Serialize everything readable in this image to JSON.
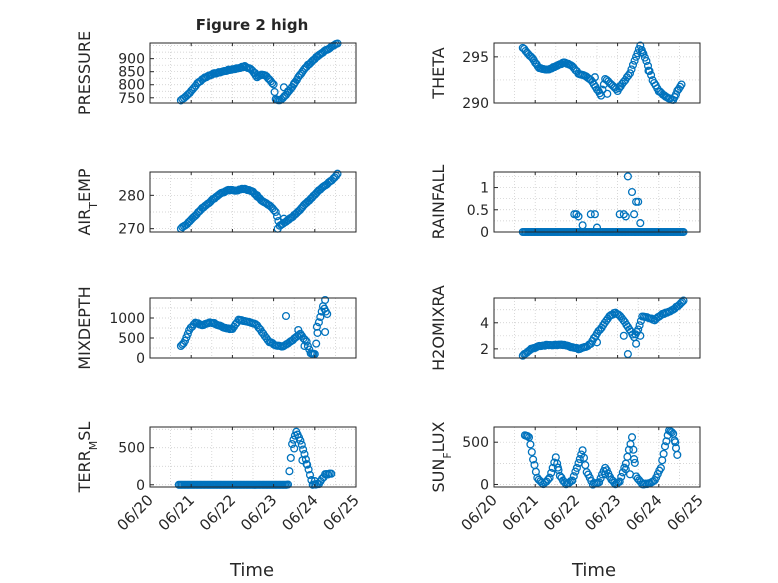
{
  "figure": {
    "title": "Figure 2 high",
    "xlabel": "Time",
    "x_ticks": [
      "06/20",
      "06/21",
      "06/22",
      "06/23",
      "06/24",
      "06/25"
    ]
  },
  "colors": {
    "marker": "#0072BD",
    "axis": "#262626",
    "grid": "#c8c8c8"
  },
  "chart_data": [
    {
      "type": "scatter",
      "ylabel": "PRESSURE",
      "xlim": [
        0,
        5
      ],
      "ylim": [
        730,
        960
      ],
      "yticks": [
        750,
        800,
        850,
        900
      ],
      "ytick_labels": [
        "750",
        "800",
        "850",
        "900"
      ],
      "knots": [
        [
          0.75,
          740
        ],
        [
          0.9,
          760
        ],
        [
          1.0,
          775
        ],
        [
          1.15,
          805
        ],
        [
          1.3,
          825
        ],
        [
          1.5,
          840
        ],
        [
          1.7,
          848
        ],
        [
          1.9,
          856
        ],
        [
          2.1,
          862
        ],
        [
          2.3,
          870
        ],
        [
          2.45,
          860
        ],
        [
          2.6,
          830
        ],
        [
          2.7,
          840
        ],
        [
          2.8,
          835
        ],
        [
          2.9,
          820
        ],
        [
          3.0,
          800
        ],
        [
          3.05,
          745
        ],
        [
          3.15,
          740
        ],
        [
          3.3,
          760
        ],
        [
          3.45,
          790
        ],
        [
          3.6,
          830
        ],
        [
          3.8,
          870
        ],
        [
          4.0,
          900
        ],
        [
          4.2,
          925
        ],
        [
          4.4,
          945
        ],
        [
          4.55,
          958
        ]
      ],
      "extra": [
        [
          3.25,
          790
        ],
        [
          3.35,
          775
        ],
        [
          3.5,
          805
        ],
        [
          2.55,
          845
        ]
      ]
    },
    {
      "type": "scatter",
      "ylabel": "THETA",
      "xlim": [
        0,
        5
      ],
      "ylim": [
        290,
        296.5
      ],
      "yticks": [
        290,
        295
      ],
      "ytick_labels": [
        "290",
        "295"
      ],
      "knots": [
        [
          0.7,
          296
        ],
        [
          0.9,
          295
        ],
        [
          1.1,
          293.8
        ],
        [
          1.3,
          293.6
        ],
        [
          1.5,
          294
        ],
        [
          1.7,
          294.4
        ],
        [
          1.9,
          294
        ],
        [
          2.05,
          293.2
        ],
        [
          2.2,
          293
        ],
        [
          2.35,
          292.5
        ],
        [
          2.5,
          291.5
        ],
        [
          2.6,
          290.8
        ],
        [
          2.7,
          292.6
        ],
        [
          2.85,
          292
        ],
        [
          3.0,
          291.3
        ],
        [
          3.15,
          292.3
        ],
        [
          3.3,
          293.2
        ],
        [
          3.45,
          295
        ],
        [
          3.55,
          296.2
        ],
        [
          3.7,
          294.5
        ],
        [
          3.85,
          292.5
        ],
        [
          4.0,
          291.3
        ],
        [
          4.2,
          290.6
        ],
        [
          4.35,
          290.3
        ],
        [
          4.45,
          291.3
        ],
        [
          4.55,
          292
        ]
      ],
      "extra": [
        [
          2.45,
          292.8
        ],
        [
          2.75,
          291
        ],
        [
          3.05,
          291.8
        ],
        [
          3.6,
          295.5
        ],
        [
          3.75,
          293.5
        ]
      ]
    },
    {
      "type": "scatter",
      "ylabel": "AIR_TEMP",
      "ylabel_main": "AIR",
      "ylabel_sub": "T",
      "ylabel_rest": "EMP",
      "xlim": [
        0,
        5
      ],
      "ylim": [
        269,
        287
      ],
      "yticks": [
        270,
        280
      ],
      "ytick_labels": [
        "270",
        "280"
      ],
      "knots": [
        [
          0.75,
          270
        ],
        [
          0.9,
          271.5
        ],
        [
          1.1,
          274
        ],
        [
          1.3,
          276.5
        ],
        [
          1.5,
          278.5
        ],
        [
          1.7,
          280.5
        ],
        [
          1.9,
          281.5
        ],
        [
          2.1,
          281.5
        ],
        [
          2.3,
          282
        ],
        [
          2.5,
          281
        ],
        [
          2.7,
          278.5
        ],
        [
          2.9,
          277
        ],
        [
          3.05,
          275
        ],
        [
          3.15,
          271
        ],
        [
          3.3,
          272
        ],
        [
          3.5,
          274
        ],
        [
          3.7,
          276.5
        ],
        [
          3.9,
          279
        ],
        [
          4.1,
          281.5
        ],
        [
          4.3,
          283.5
        ],
        [
          4.45,
          285
        ],
        [
          4.55,
          286.5
        ]
      ],
      "extra": [
        [
          3.1,
          270
        ],
        [
          3.25,
          273
        ],
        [
          2.6,
          280
        ]
      ]
    },
    {
      "type": "scatter",
      "ylabel": "RAINFALL",
      "xlim": [
        0,
        5
      ],
      "ylim": [
        0,
        1.35
      ],
      "yticks": [
        0,
        0.5,
        1
      ],
      "ytick_labels": [
        "0",
        "0.5",
        "1"
      ],
      "knots": [
        [
          0.7,
          0
        ],
        [
          4.6,
          0
        ]
      ],
      "extra": [
        [
          1.95,
          0.4
        ],
        [
          2.0,
          0.4
        ],
        [
          2.05,
          0.35
        ],
        [
          2.15,
          0.15
        ],
        [
          2.35,
          0.4
        ],
        [
          2.45,
          0.4
        ],
        [
          2.5,
          0.1
        ],
        [
          3.05,
          0.4
        ],
        [
          3.15,
          0.4
        ],
        [
          3.2,
          0.35
        ],
        [
          3.25,
          1.25
        ],
        [
          3.35,
          0.9
        ],
        [
          3.45,
          0.68
        ],
        [
          3.5,
          0.68
        ],
        [
          3.4,
          0.4
        ],
        [
          3.55,
          0.2
        ]
      ]
    },
    {
      "type": "scatter",
      "ylabel": "MIXDEPTH",
      "xlim": [
        0,
        5
      ],
      "ylim": [
        0,
        1500
      ],
      "yticks": [
        0,
        500,
        1000
      ],
      "ytick_labels": [
        "0",
        "500",
        "1000"
      ],
      "knots": [
        [
          0.75,
          300
        ],
        [
          0.85,
          420
        ],
        [
          0.95,
          700
        ],
        [
          1.1,
          880
        ],
        [
          1.3,
          820
        ],
        [
          1.45,
          900
        ],
        [
          1.6,
          850
        ],
        [
          1.8,
          760
        ],
        [
          2.0,
          720
        ],
        [
          2.15,
          950
        ],
        [
          2.3,
          930
        ],
        [
          2.45,
          880
        ],
        [
          2.6,
          820
        ],
        [
          2.75,
          600
        ],
        [
          2.9,
          400
        ],
        [
          3.05,
          320
        ],
        [
          3.2,
          280
        ],
        [
          3.35,
          360
        ],
        [
          3.5,
          480
        ],
        [
          3.65,
          600
        ],
        [
          3.8,
          400
        ],
        [
          3.9,
          120
        ],
        [
          4.0,
          100
        ],
        [
          4.1,
          900
        ],
        [
          4.2,
          1300
        ],
        [
          4.3,
          1100
        ]
      ],
      "extra": [
        [
          3.3,
          1050
        ],
        [
          3.6,
          700
        ],
        [
          3.75,
          300
        ],
        [
          4.05,
          780
        ],
        [
          4.25,
          650
        ],
        [
          4.25,
          1450
        ]
      ]
    },
    {
      "type": "scatter",
      "ylabel": "H2OMIXRA",
      "xlim": [
        0,
        5
      ],
      "ylim": [
        1.3,
        5.9
      ],
      "yticks": [
        2,
        4
      ],
      "ytick_labels": [
        "2",
        "4"
      ],
      "knots": [
        [
          0.7,
          1.5
        ],
        [
          0.9,
          2.0
        ],
        [
          1.1,
          2.2
        ],
        [
          1.3,
          2.3
        ],
        [
          1.5,
          2.3
        ],
        [
          1.7,
          2.3
        ],
        [
          1.9,
          2.1
        ],
        [
          2.05,
          2.0
        ],
        [
          2.2,
          2.1
        ],
        [
          2.35,
          2.4
        ],
        [
          2.5,
          3.2
        ],
        [
          2.65,
          3.8
        ],
        [
          2.8,
          4.5
        ],
        [
          2.95,
          4.8
        ],
        [
          3.1,
          4.4
        ],
        [
          3.25,
          3.7
        ],
        [
          3.4,
          2.9
        ],
        [
          3.5,
          3.5
        ],
        [
          3.6,
          4.5
        ],
        [
          3.75,
          4.4
        ],
        [
          3.9,
          4.2
        ],
        [
          4.05,
          4.6
        ],
        [
          4.2,
          4.8
        ],
        [
          4.35,
          5.0
        ],
        [
          4.5,
          5.4
        ],
        [
          4.6,
          5.7
        ]
      ],
      "extra": [
        [
          3.25,
          1.6
        ],
        [
          3.15,
          3.0
        ],
        [
          2.5,
          2.5
        ],
        [
          3.45,
          2.4
        ],
        [
          3.55,
          3.0
        ]
      ]
    },
    {
      "type": "scatter",
      "ylabel": "TERR_MSL",
      "ylabel_main": "TERR",
      "ylabel_sub": "M",
      "ylabel_rest": "SL",
      "xlim": [
        0,
        5
      ],
      "ylim": [
        -30,
        780
      ],
      "yticks": [
        0,
        500
      ],
      "ytick_labels": [
        "0",
        "500"
      ],
      "knots": [
        [
          0.7,
          0
        ],
        [
          3.35,
          0
        ],
        [
          3.45,
          550
        ],
        [
          3.55,
          720
        ],
        [
          3.65,
          600
        ],
        [
          3.75,
          420
        ],
        [
          3.85,
          200
        ],
        [
          3.95,
          0
        ],
        [
          4.1,
          10
        ],
        [
          4.25,
          140
        ],
        [
          4.4,
          150
        ]
      ],
      "extra": [
        [
          3.7,
          330
        ],
        [
          3.8,
          280
        ],
        [
          4.0,
          50
        ],
        [
          3.5,
          490
        ]
      ]
    },
    {
      "type": "scatter",
      "ylabel": "SUN_FLUX",
      "ylabel_main": "SUN",
      "ylabel_sub": "F",
      "ylabel_rest": "LUX",
      "xlim": [
        0,
        5
      ],
      "ylim": [
        -30,
        680
      ],
      "yticks": [
        0,
        500
      ],
      "ytick_labels": [
        "0",
        "500"
      ],
      "knots": [
        [
          0.75,
          580
        ],
        [
          0.85,
          560
        ],
        [
          0.95,
          300
        ],
        [
          1.05,
          80
        ],
        [
          1.2,
          0
        ],
        [
          1.35,
          80
        ],
        [
          1.5,
          320
        ],
        [
          1.6,
          100
        ],
        [
          1.75,
          0
        ],
        [
          1.9,
          50
        ],
        [
          2.05,
          250
        ],
        [
          2.15,
          400
        ],
        [
          2.25,
          150
        ],
        [
          2.4,
          0
        ],
        [
          2.55,
          30
        ],
        [
          2.7,
          200
        ],
        [
          2.85,
          60
        ],
        [
          2.95,
          0
        ],
        [
          3.05,
          30
        ],
        [
          3.2,
          250
        ],
        [
          3.35,
          560
        ],
        [
          3.45,
          100
        ],
        [
          3.6,
          0
        ],
        [
          3.75,
          10
        ],
        [
          3.9,
          50
        ],
        [
          4.05,
          200
        ],
        [
          4.15,
          450
        ],
        [
          4.25,
          640
        ],
        [
          4.35,
          600
        ],
        [
          4.45,
          350
        ]
      ],
      "extra": [
        [
          3.2,
          180
        ],
        [
          3.3,
          120
        ],
        [
          3.4,
          300
        ],
        [
          4.4,
          500
        ],
        [
          2.7,
          120
        ],
        [
          1.55,
          200
        ]
      ]
    }
  ]
}
